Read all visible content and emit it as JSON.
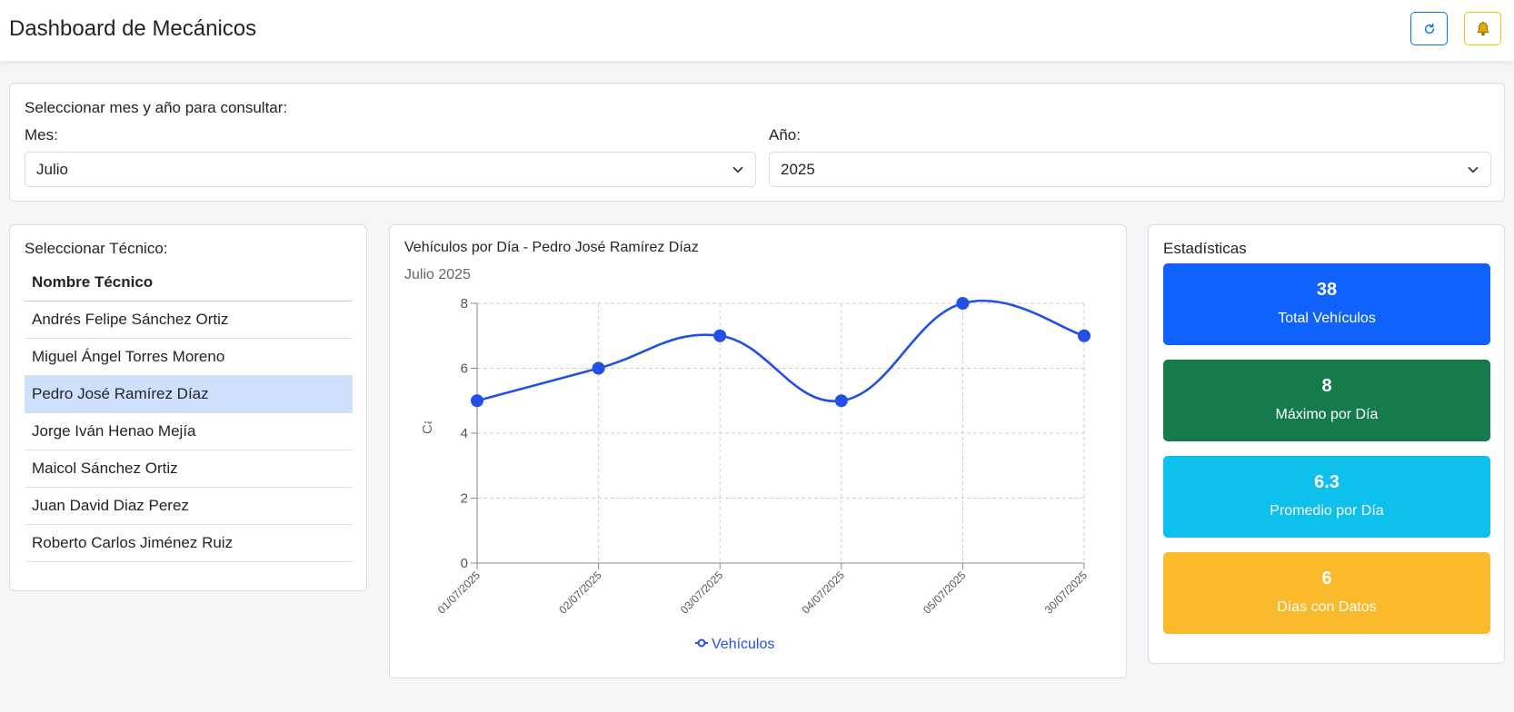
{
  "header": {
    "title": "Dashboard de Mecánicos",
    "refresh_icon": "refresh-icon",
    "bell_icon": "bell-icon"
  },
  "filters": {
    "heading": "Seleccionar mes y año para consultar:",
    "month_label": "Mes:",
    "month_value": "Julio",
    "year_label": "Año:",
    "year_value": "2025"
  },
  "technicians": {
    "heading": "Seleccionar Técnico:",
    "column_header": "Nombre Técnico",
    "selected_index": 2,
    "rows": [
      "Andrés Felipe Sánchez Ortiz",
      "Miguel Ángel Torres Moreno",
      "Pedro José Ramírez Díaz",
      "Jorge Iván Henao Mejía",
      "Maicol Sánchez Ortiz",
      "Juan David Diaz Perez",
      "Roberto Carlos Jiménez Ruiz"
    ]
  },
  "chart": {
    "title": "Vehículos por Día - Pedro José Ramírez Díaz",
    "subtitle": "Julio 2025"
  },
  "chart_data": {
    "type": "line",
    "categories": [
      "01/07/2025",
      "02/07/2025",
      "03/07/2025",
      "04/07/2025",
      "05/07/2025",
      "30/07/2025"
    ],
    "series": [
      {
        "name": "Vehículos",
        "values": [
          5,
          6,
          7,
          5,
          8,
          7
        ]
      }
    ],
    "ylabel": "Cantidad de Vehículos",
    "ylim": [
      0,
      8
    ],
    "yticks": [
      0,
      2,
      4,
      6,
      8
    ],
    "grid": true,
    "legend_position": "bottom",
    "color": "#2250e5"
  },
  "stats": {
    "heading": "Estadísticas",
    "tiles": [
      {
        "value": "38",
        "label": "Total Vehículos",
        "color": "#0f62fe"
      },
      {
        "value": "8",
        "label": "Máximo por Día",
        "color": "#157a4c"
      },
      {
        "value": "6.3",
        "label": "Promedio por Día",
        "color": "#0ec0ec"
      },
      {
        "value": "6",
        "label": "Días con Datos",
        "color": "#fbba2b"
      }
    ]
  }
}
